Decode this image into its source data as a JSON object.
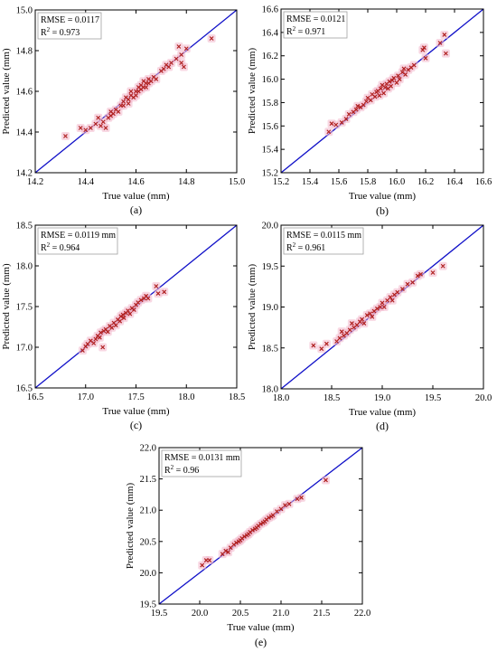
{
  "charts": [
    {
      "id": "a",
      "caption": "(a)",
      "rmse_text": "RMSE = 0.0117",
      "r2_label": "R",
      "r2_value": " = 0.973",
      "xlabel": "True value (mm)",
      "ylabel": "Predicted value (mm)",
      "xlim": [
        14.2,
        15.0
      ],
      "ylim": [
        14.2,
        15.0
      ],
      "xticks": [
        "14.2",
        "14.4",
        "14.6",
        "14.8",
        "15.0"
      ],
      "yticks": [
        "14.2",
        "14.4",
        "14.6",
        "14.8",
        "15.0"
      ],
      "points": [
        [
          14.32,
          14.38
        ],
        [
          14.38,
          14.42
        ],
        [
          14.4,
          14.41
        ],
        [
          14.42,
          14.42
        ],
        [
          14.44,
          14.44
        ],
        [
          14.45,
          14.47
        ],
        [
          14.46,
          14.43
        ],
        [
          14.47,
          14.45
        ],
        [
          14.48,
          14.42
        ],
        [
          14.49,
          14.47
        ],
        [
          14.5,
          14.48
        ],
        [
          14.5,
          14.5
        ],
        [
          14.51,
          14.49
        ],
        [
          14.52,
          14.51
        ],
        [
          14.53,
          14.5
        ],
        [
          14.54,
          14.53
        ],
        [
          14.55,
          14.53
        ],
        [
          14.55,
          14.55
        ],
        [
          14.56,
          14.57
        ],
        [
          14.57,
          14.54
        ],
        [
          14.57,
          14.56
        ],
        [
          14.58,
          14.58
        ],
        [
          14.58,
          14.6
        ],
        [
          14.59,
          14.57
        ],
        [
          14.6,
          14.6
        ],
        [
          14.6,
          14.58
        ],
        [
          14.61,
          14.62
        ],
        [
          14.61,
          14.6
        ],
        [
          14.62,
          14.61
        ],
        [
          14.62,
          14.63
        ],
        [
          14.63,
          14.62
        ],
        [
          14.63,
          14.65
        ],
        [
          14.64,
          14.64
        ],
        [
          14.64,
          14.62
        ],
        [
          14.65,
          14.66
        ],
        [
          14.65,
          14.64
        ],
        [
          14.66,
          14.65
        ],
        [
          14.67,
          14.67
        ],
        [
          14.68,
          14.66
        ],
        [
          14.7,
          14.7
        ],
        [
          14.71,
          14.71
        ],
        [
          14.72,
          14.73
        ],
        [
          14.73,
          14.72
        ],
        [
          14.74,
          14.74
        ],
        [
          14.76,
          14.76
        ],
        [
          14.77,
          14.82
        ],
        [
          14.78,
          14.78
        ],
        [
          14.78,
          14.74
        ],
        [
          14.79,
          14.72
        ],
        [
          14.8,
          14.81
        ],
        [
          14.9,
          14.86
        ]
      ]
    },
    {
      "id": "b",
      "caption": "(b)",
      "rmse_text": "RMSE = 0.0121",
      "r2_label": "R",
      "r2_value": " = 0.971",
      "xlabel": "True value (mm)",
      "ylabel": "Predicted value (mm)",
      "xlim": [
        15.2,
        16.6
      ],
      "ylim": [
        15.2,
        16.6
      ],
      "xticks": [
        "15.2",
        "15.4",
        "15.6",
        "15.8",
        "16.0",
        "16.2",
        "16.4",
        "16.6"
      ],
      "yticks": [
        "15.2",
        "15.4",
        "15.6",
        "15.8",
        "16.0",
        "16.2",
        "16.4",
        "16.6"
      ],
      "points": [
        [
          15.53,
          15.55
        ],
        [
          15.55,
          15.62
        ],
        [
          15.58,
          15.61
        ],
        [
          15.62,
          15.63
        ],
        [
          15.65,
          15.66
        ],
        [
          15.67,
          15.7
        ],
        [
          15.7,
          15.72
        ],
        [
          15.72,
          15.74
        ],
        [
          15.73,
          15.77
        ],
        [
          15.75,
          15.76
        ],
        [
          15.77,
          15.78
        ],
        [
          15.79,
          15.81
        ],
        [
          15.8,
          15.84
        ],
        [
          15.82,
          15.82
        ],
        [
          15.83,
          15.87
        ],
        [
          15.85,
          15.85
        ],
        [
          15.86,
          15.89
        ],
        [
          15.87,
          15.9
        ],
        [
          15.88,
          15.86
        ],
        [
          15.89,
          15.92
        ],
        [
          15.9,
          15.95
        ],
        [
          15.91,
          15.88
        ],
        [
          15.92,
          15.93
        ],
        [
          15.93,
          15.96
        ],
        [
          15.94,
          15.92
        ],
        [
          15.95,
          15.98
        ],
        [
          15.96,
          15.94
        ],
        [
          15.97,
          15.99
        ],
        [
          15.98,
          16.01
        ],
        [
          16.0,
          15.97
        ],
        [
          16.01,
          16.03
        ],
        [
          16.02,
          16.0
        ],
        [
          16.04,
          16.06
        ],
        [
          16.05,
          16.09
        ],
        [
          16.06,
          16.04
        ],
        [
          16.08,
          16.08
        ],
        [
          16.1,
          16.1
        ],
        [
          16.12,
          16.12
        ],
        [
          16.18,
          16.25
        ],
        [
          16.19,
          16.27
        ],
        [
          16.2,
          16.18
        ],
        [
          16.3,
          16.31
        ],
        [
          16.33,
          16.38
        ],
        [
          16.34,
          16.22
        ]
      ]
    },
    {
      "id": "c",
      "caption": "(c)",
      "rmse_text": "RMSE = 0.0119 mm",
      "r2_label": "R",
      "r2_value": " = 0.964",
      "xlabel": "True value (mm)",
      "ylabel": "Predicted value (mm)",
      "xlim": [
        16.5,
        18.5
      ],
      "ylim": [
        16.5,
        18.5
      ],
      "xticks": [
        "16.5",
        "17.0",
        "17.5",
        "18.0",
        "18.5"
      ],
      "yticks": [
        "16.5",
        "17.0",
        "17.5",
        "18.0",
        "18.5"
      ],
      "points": [
        [
          16.97,
          16.96
        ],
        [
          17.0,
          17.01
        ],
        [
          17.02,
          17.04
        ],
        [
          17.05,
          17.08
        ],
        [
          17.08,
          17.05
        ],
        [
          17.1,
          17.1
        ],
        [
          17.12,
          17.14
        ],
        [
          17.14,
          17.12
        ],
        [
          17.15,
          17.18
        ],
        [
          17.17,
          17.0
        ],
        [
          17.18,
          17.2
        ],
        [
          17.2,
          17.22
        ],
        [
          17.22,
          17.19
        ],
        [
          17.24,
          17.26
        ],
        [
          17.26,
          17.24
        ],
        [
          17.28,
          17.3
        ],
        [
          17.3,
          17.27
        ],
        [
          17.32,
          17.34
        ],
        [
          17.34,
          17.32
        ],
        [
          17.35,
          17.38
        ],
        [
          17.37,
          17.4
        ],
        [
          17.38,
          17.36
        ],
        [
          17.4,
          17.42
        ],
        [
          17.42,
          17.45
        ],
        [
          17.44,
          17.41
        ],
        [
          17.46,
          17.48
        ],
        [
          17.48,
          17.46
        ],
        [
          17.5,
          17.52
        ],
        [
          17.52,
          17.55
        ],
        [
          17.55,
          17.58
        ],
        [
          17.58,
          17.6
        ],
        [
          17.6,
          17.63
        ],
        [
          17.62,
          17.6
        ],
        [
          17.7,
          17.75
        ],
        [
          17.72,
          17.66
        ],
        [
          17.78,
          17.68
        ]
      ]
    },
    {
      "id": "d",
      "caption": "(d)",
      "rmse_text": "RMSE = 0.0115 mm",
      "r2_label": "R",
      "r2_value": " = 0.961",
      "xlabel": "True value (mm)",
      "ylabel": "Predicted value (mm)",
      "xlim": [
        18.0,
        20.0
      ],
      "ylim": [
        18.0,
        20.0
      ],
      "xticks": [
        "18.0",
        "18.5",
        "19.0",
        "19.5",
        "20.0"
      ],
      "yticks": [
        "18.0",
        "18.5",
        "19.0",
        "19.5",
        "20.0"
      ],
      "points": [
        [
          18.32,
          18.53
        ],
        [
          18.4,
          18.49
        ],
        [
          18.45,
          18.55
        ],
        [
          18.55,
          18.58
        ],
        [
          18.58,
          18.62
        ],
        [
          18.6,
          18.7
        ],
        [
          18.62,
          18.65
        ],
        [
          18.65,
          18.68
        ],
        [
          18.68,
          18.72
        ],
        [
          18.7,
          18.8
        ],
        [
          18.72,
          18.75
        ],
        [
          18.75,
          18.78
        ],
        [
          18.78,
          18.82
        ],
        [
          18.8,
          18.85
        ],
        [
          18.82,
          18.8
        ],
        [
          18.85,
          18.9
        ],
        [
          18.88,
          18.92
        ],
        [
          18.9,
          18.88
        ],
        [
          18.92,
          18.95
        ],
        [
          18.95,
          18.98
        ],
        [
          18.98,
          19.0
        ],
        [
          19.0,
          19.05
        ],
        [
          19.02,
          19.0
        ],
        [
          19.05,
          19.08
        ],
        [
          19.08,
          19.12
        ],
        [
          19.1,
          19.08
        ],
        [
          19.12,
          19.15
        ],
        [
          19.15,
          19.18
        ],
        [
          19.2,
          19.22
        ],
        [
          19.25,
          19.28
        ],
        [
          19.3,
          19.3
        ],
        [
          19.35,
          19.38
        ],
        [
          19.38,
          19.4
        ],
        [
          19.5,
          19.42
        ],
        [
          19.6,
          19.5
        ]
      ]
    },
    {
      "id": "e",
      "caption": "(e)",
      "rmse_text": "RMSE = 0.0131 mm",
      "r2_label": "R",
      "r2_value": " = 0.96",
      "xlabel": "True value (mm)",
      "ylabel": "Predicted value (mm)",
      "xlim": [
        19.5,
        22.0
      ],
      "ylim": [
        19.5,
        22.0
      ],
      "xticks": [
        "19.5",
        "20.0",
        "20.5",
        "21.0",
        "21.5",
        "22.0"
      ],
      "yticks": [
        "19.5",
        "20.0",
        "20.5",
        "21.0",
        "21.5",
        "22.0"
      ],
      "points": [
        [
          20.03,
          20.12
        ],
        [
          20.08,
          20.2
        ],
        [
          20.12,
          20.2
        ],
        [
          20.28,
          20.3
        ],
        [
          20.32,
          20.35
        ],
        [
          20.35,
          20.33
        ],
        [
          20.38,
          20.4
        ],
        [
          20.42,
          20.45
        ],
        [
          20.45,
          20.48
        ],
        [
          20.48,
          20.5
        ],
        [
          20.5,
          20.52
        ],
        [
          20.52,
          20.55
        ],
        [
          20.55,
          20.58
        ],
        [
          20.58,
          20.6
        ],
        [
          20.6,
          20.62
        ],
        [
          20.62,
          20.65
        ],
        [
          20.65,
          20.68
        ],
        [
          20.68,
          20.7
        ],
        [
          20.7,
          20.72
        ],
        [
          20.72,
          20.75
        ],
        [
          20.75,
          20.78
        ],
        [
          20.78,
          20.8
        ],
        [
          20.8,
          20.82
        ],
        [
          20.82,
          20.85
        ],
        [
          20.85,
          20.88
        ],
        [
          20.88,
          20.9
        ],
        [
          20.9,
          20.92
        ],
        [
          20.95,
          20.98
        ],
        [
          21.0,
          21.02
        ],
        [
          21.05,
          21.08
        ],
        [
          21.1,
          21.1
        ],
        [
          21.2,
          21.18
        ],
        [
          21.25,
          21.2
        ],
        [
          21.55,
          21.48
        ]
      ]
    }
  ],
  "chart_data": [
    {
      "type": "scatter",
      "caption": "(a)",
      "xlabel": "True value (mm)",
      "ylabel": "Predicted value (mm)",
      "xlim": [
        14.2,
        15.0
      ],
      "ylim": [
        14.2,
        15.0
      ],
      "annotations": [
        "RMSE = 0.0117",
        "R2 = 0.973"
      ],
      "reference_line": "y = x",
      "grid": false
    },
    {
      "type": "scatter",
      "caption": "(b)",
      "xlabel": "True value (mm)",
      "ylabel": "Predicted value (mm)",
      "xlim": [
        15.2,
        16.6
      ],
      "ylim": [
        15.2,
        16.6
      ],
      "annotations": [
        "RMSE = 0.0121",
        "R2 = 0.971"
      ],
      "reference_line": "y = x",
      "grid": false
    },
    {
      "type": "scatter",
      "caption": "(c)",
      "xlabel": "True value (mm)",
      "ylabel": "Predicted value (mm)",
      "xlim": [
        16.5,
        18.5
      ],
      "ylim": [
        16.5,
        18.5
      ],
      "annotations": [
        "RMSE = 0.0119 mm",
        "R2 = 0.964"
      ],
      "reference_line": "y = x",
      "grid": false
    },
    {
      "type": "scatter",
      "caption": "(d)",
      "xlabel": "True value (mm)",
      "ylabel": "Predicted value (mm)",
      "xlim": [
        18.0,
        20.0
      ],
      "ylim": [
        18.0,
        20.0
      ],
      "annotations": [
        "RMSE = 0.0115 mm",
        "R2 = 0.961"
      ],
      "reference_line": "y = x",
      "grid": false
    },
    {
      "type": "scatter",
      "caption": "(e)",
      "xlabel": "True value (mm)",
      "ylabel": "Predicted value (mm)",
      "xlim": [
        19.5,
        22.0
      ],
      "ylim": [
        19.5,
        22.0
      ],
      "annotations": [
        "RMSE = 0.0131 mm",
        "R2 = 0.96"
      ],
      "reference_line": "y = x",
      "grid": false
    }
  ],
  "colors": {
    "reference_line": "#1010c8",
    "marker": "#b02020",
    "marker_halo": "#f3b8cc",
    "axis": "#000000",
    "annotation_border": "#a0a0a0"
  },
  "icons": {
    "marker": "x-marker"
  }
}
